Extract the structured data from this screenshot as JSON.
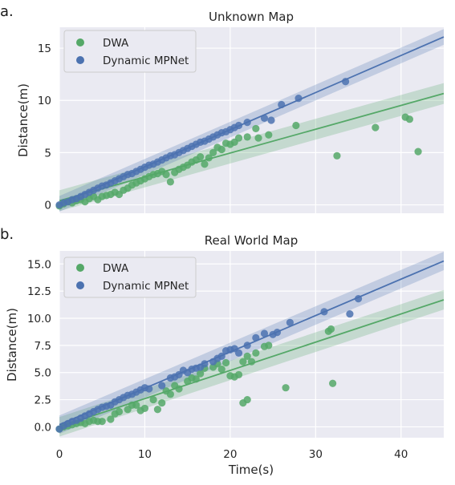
{
  "figure": {
    "xlabel": "Time(s)",
    "colors": {
      "axes_bg": "#eaeaf2",
      "grid": "#ffffff",
      "dwa": "#55a868",
      "mpnet": "#4c72b0"
    }
  },
  "chart_data": [
    {
      "type": "scatter",
      "panel_label": "a.",
      "title": "Unknown Map",
      "ylabel": "Distance(m)",
      "xlabel": "",
      "xlim": [
        0,
        45
      ],
      "ylim": [
        -0.8,
        17
      ],
      "xticks": [
        0,
        10,
        20,
        30,
        40
      ],
      "yticks": [
        0,
        5,
        10,
        15
      ],
      "ytick_labels": [
        "0",
        "5",
        "10",
        "15"
      ],
      "legend": {
        "position": "top-left",
        "entries": [
          "DWA",
          "Dynamic MPNet"
        ]
      },
      "series": [
        {
          "name": "DWA",
          "color": "#55a868",
          "fit": {
            "intercept": 0.4,
            "slope": 0.228,
            "band": 1.0
          },
          "points": [
            [
              0,
              -0.1
            ],
            [
              0.5,
              0.1
            ],
            [
              1,
              0.3
            ],
            [
              1.5,
              0.2
            ],
            [
              2,
              0.4
            ],
            [
              2.5,
              0.5
            ],
            [
              3,
              0.3
            ],
            [
              3.5,
              0.6
            ],
            [
              4,
              0.8
            ],
            [
              4.5,
              0.5
            ],
            [
              5,
              0.8
            ],
            [
              5.5,
              0.9
            ],
            [
              6,
              1.0
            ],
            [
              6.5,
              1.2
            ],
            [
              7,
              1.0
            ],
            [
              7.5,
              1.4
            ],
            [
              8,
              1.6
            ],
            [
              8.5,
              1.9
            ],
            [
              9,
              2.1
            ],
            [
              9.5,
              2.3
            ],
            [
              10,
              2.5
            ],
            [
              10.5,
              2.7
            ],
            [
              11,
              2.9
            ],
            [
              11.5,
              3.0
            ],
            [
              12,
              3.2
            ],
            [
              12.5,
              2.9
            ],
            [
              13,
              2.2
            ],
            [
              13.5,
              3.1
            ],
            [
              14,
              3.4
            ],
            [
              14.5,
              3.6
            ],
            [
              15,
              3.8
            ],
            [
              15.5,
              4.1
            ],
            [
              16,
              4.3
            ],
            [
              16.5,
              4.6
            ],
            [
              17,
              3.9
            ],
            [
              17.5,
              4.5
            ],
            [
              18,
              5.0
            ],
            [
              18.5,
              5.5
            ],
            [
              19,
              5.3
            ],
            [
              19.5,
              5.9
            ],
            [
              20,
              5.8
            ],
            [
              20.5,
              6.0
            ],
            [
              21,
              6.4
            ],
            [
              22,
              6.5
            ],
            [
              23,
              7.3
            ],
            [
              23.3,
              6.4
            ],
            [
              24.5,
              6.7
            ],
            [
              27.7,
              7.6
            ],
            [
              32.5,
              4.7
            ],
            [
              37,
              7.4
            ],
            [
              40.5,
              8.4
            ],
            [
              41,
              8.2
            ],
            [
              42,
              5.1
            ]
          ]
        },
        {
          "name": "Dynamic MPNet",
          "color": "#4c72b0",
          "fit": {
            "intercept": 0.1,
            "slope": 0.355,
            "band": 0.75
          },
          "points": [
            [
              0,
              0.0
            ],
            [
              0.5,
              0.2
            ],
            [
              1,
              0.3
            ],
            [
              1.5,
              0.5
            ],
            [
              2,
              0.6
            ],
            [
              2.5,
              0.8
            ],
            [
              3,
              1.0
            ],
            [
              3.5,
              1.2
            ],
            [
              4,
              1.4
            ],
            [
              4.5,
              1.6
            ],
            [
              5,
              1.8
            ],
            [
              5.5,
              1.9
            ],
            [
              6,
              2.1
            ],
            [
              6.5,
              2.3
            ],
            [
              7,
              2.5
            ],
            [
              7.5,
              2.7
            ],
            [
              8,
              2.9
            ],
            [
              8.5,
              3.0
            ],
            [
              9,
              3.2
            ],
            [
              9.5,
              3.4
            ],
            [
              10,
              3.6
            ],
            [
              10.5,
              3.8
            ],
            [
              11,
              3.9
            ],
            [
              11.5,
              4.1
            ],
            [
              12,
              4.3
            ],
            [
              12.5,
              4.5
            ],
            [
              13,
              4.7
            ],
            [
              13.5,
              4.8
            ],
            [
              14,
              5.0
            ],
            [
              14.5,
              5.2
            ],
            [
              15,
              5.4
            ],
            [
              15.5,
              5.6
            ],
            [
              16,
              5.8
            ],
            [
              16.5,
              6.0
            ],
            [
              17,
              6.1
            ],
            [
              17.5,
              6.3
            ],
            [
              18,
              6.5
            ],
            [
              18.5,
              6.7
            ],
            [
              19,
              6.9
            ],
            [
              19.5,
              7.0
            ],
            [
              20,
              7.2
            ],
            [
              20.5,
              7.4
            ],
            [
              21,
              7.6
            ],
            [
              22,
              7.9
            ],
            [
              24,
              8.3
            ],
            [
              24.8,
              8.1
            ],
            [
              26,
              9.6
            ],
            [
              28,
              10.2
            ],
            [
              33.5,
              11.8
            ]
          ]
        }
      ]
    },
    {
      "type": "scatter",
      "panel_label": "b.",
      "title": "Real World Map",
      "ylabel": "Distance(m)",
      "xlabel": "Time(s)",
      "xlim": [
        0,
        45
      ],
      "ylim": [
        -1.0,
        16.2
      ],
      "xticks": [
        0,
        10,
        20,
        30,
        40
      ],
      "yticks": [
        0,
        2.5,
        5,
        7.5,
        10,
        12.5,
        15
      ],
      "ytick_labels": [
        "0.0",
        "2.5",
        "5.0",
        "7.5",
        "10.0",
        "12.5",
        "15.0"
      ],
      "legend": {
        "position": "top-left",
        "entries": [
          "DWA",
          "Dynamic MPNet"
        ]
      },
      "series": [
        {
          "name": "DWA",
          "color": "#55a868",
          "fit": {
            "intercept": 0.0,
            "slope": 0.26,
            "band": 0.9
          },
          "points": [
            [
              0,
              -0.2
            ],
            [
              0.5,
              0.0
            ],
            [
              1,
              0.1
            ],
            [
              1.5,
              0.2
            ],
            [
              2,
              0.3
            ],
            [
              2.5,
              0.4
            ],
            [
              3,
              0.3
            ],
            [
              3.5,
              0.5
            ],
            [
              4,
              0.6
            ],
            [
              4.5,
              0.5
            ],
            [
              5,
              0.5
            ],
            [
              6,
              0.7
            ],
            [
              6.5,
              1.2
            ],
            [
              7,
              1.4
            ],
            [
              8,
              1.6
            ],
            [
              8.5,
              2.0
            ],
            [
              9,
              2.0
            ],
            [
              9.5,
              1.5
            ],
            [
              10,
              1.7
            ],
            [
              11,
              2.5
            ],
            [
              11.5,
              1.6
            ],
            [
              12,
              2.2
            ],
            [
              12.5,
              3.3
            ],
            [
              13,
              3.0
            ],
            [
              13.5,
              3.8
            ],
            [
              14,
              3.5
            ],
            [
              15,
              4.2
            ],
            [
              15.5,
              4.5
            ],
            [
              16,
              4.4
            ],
            [
              16.5,
              4.9
            ],
            [
              17,
              5.4
            ],
            [
              18,
              5.5
            ],
            [
              18.5,
              5.8
            ],
            [
              19,
              5.3
            ],
            [
              19.5,
              5.9
            ],
            [
              20,
              4.7
            ],
            [
              20.5,
              4.6
            ],
            [
              21,
              4.8
            ],
            [
              21.5,
              6.0
            ],
            [
              22,
              6.5
            ],
            [
              22.5,
              6.0
            ],
            [
              23,
              6.8
            ],
            [
              24,
              7.4
            ],
            [
              24.5,
              7.5
            ],
            [
              21.5,
              2.2
            ],
            [
              22,
              2.5
            ],
            [
              26.5,
              3.6
            ],
            [
              31.5,
              8.8
            ],
            [
              32,
              4.0
            ],
            [
              31.8,
              9.0
            ]
          ]
        },
        {
          "name": "Dynamic MPNet",
          "color": "#4c72b0",
          "fit": {
            "intercept": 0.2,
            "slope": 0.335,
            "band": 0.85
          },
          "points": [
            [
              0,
              -0.2
            ],
            [
              0.5,
              0.1
            ],
            [
              1,
              0.3
            ],
            [
              1.5,
              0.5
            ],
            [
              2,
              0.6
            ],
            [
              2.5,
              0.8
            ],
            [
              3,
              1.0
            ],
            [
              3.5,
              1.2
            ],
            [
              4,
              1.4
            ],
            [
              4.5,
              1.6
            ],
            [
              5,
              1.8
            ],
            [
              5.5,
              1.9
            ],
            [
              6,
              2.0
            ],
            [
              6.5,
              2.3
            ],
            [
              7,
              2.5
            ],
            [
              7.5,
              2.7
            ],
            [
              8,
              2.9
            ],
            [
              8.5,
              3.0
            ],
            [
              9,
              3.2
            ],
            [
              9.5,
              3.4
            ],
            [
              10,
              3.6
            ],
            [
              10.5,
              3.5
            ],
            [
              12,
              3.8
            ],
            [
              13,
              4.5
            ],
            [
              13.5,
              4.6
            ],
            [
              14,
              4.8
            ],
            [
              14.5,
              5.2
            ],
            [
              15,
              5.0
            ],
            [
              15.5,
              5.3
            ],
            [
              16,
              5.4
            ],
            [
              16.5,
              5.5
            ],
            [
              17,
              5.8
            ],
            [
              18,
              6.0
            ],
            [
              18.5,
              6.3
            ],
            [
              19,
              6.5
            ],
            [
              19.5,
              7.0
            ],
            [
              20,
              7.1
            ],
            [
              20.5,
              7.2
            ],
            [
              21,
              6.8
            ],
            [
              22,
              7.5
            ],
            [
              23,
              8.2
            ],
            [
              24,
              8.6
            ],
            [
              25,
              8.5
            ],
            [
              25.5,
              8.7
            ],
            [
              27,
              9.6
            ],
            [
              31,
              10.6
            ],
            [
              34,
              10.4
            ],
            [
              35,
              11.8
            ]
          ]
        }
      ]
    }
  ]
}
